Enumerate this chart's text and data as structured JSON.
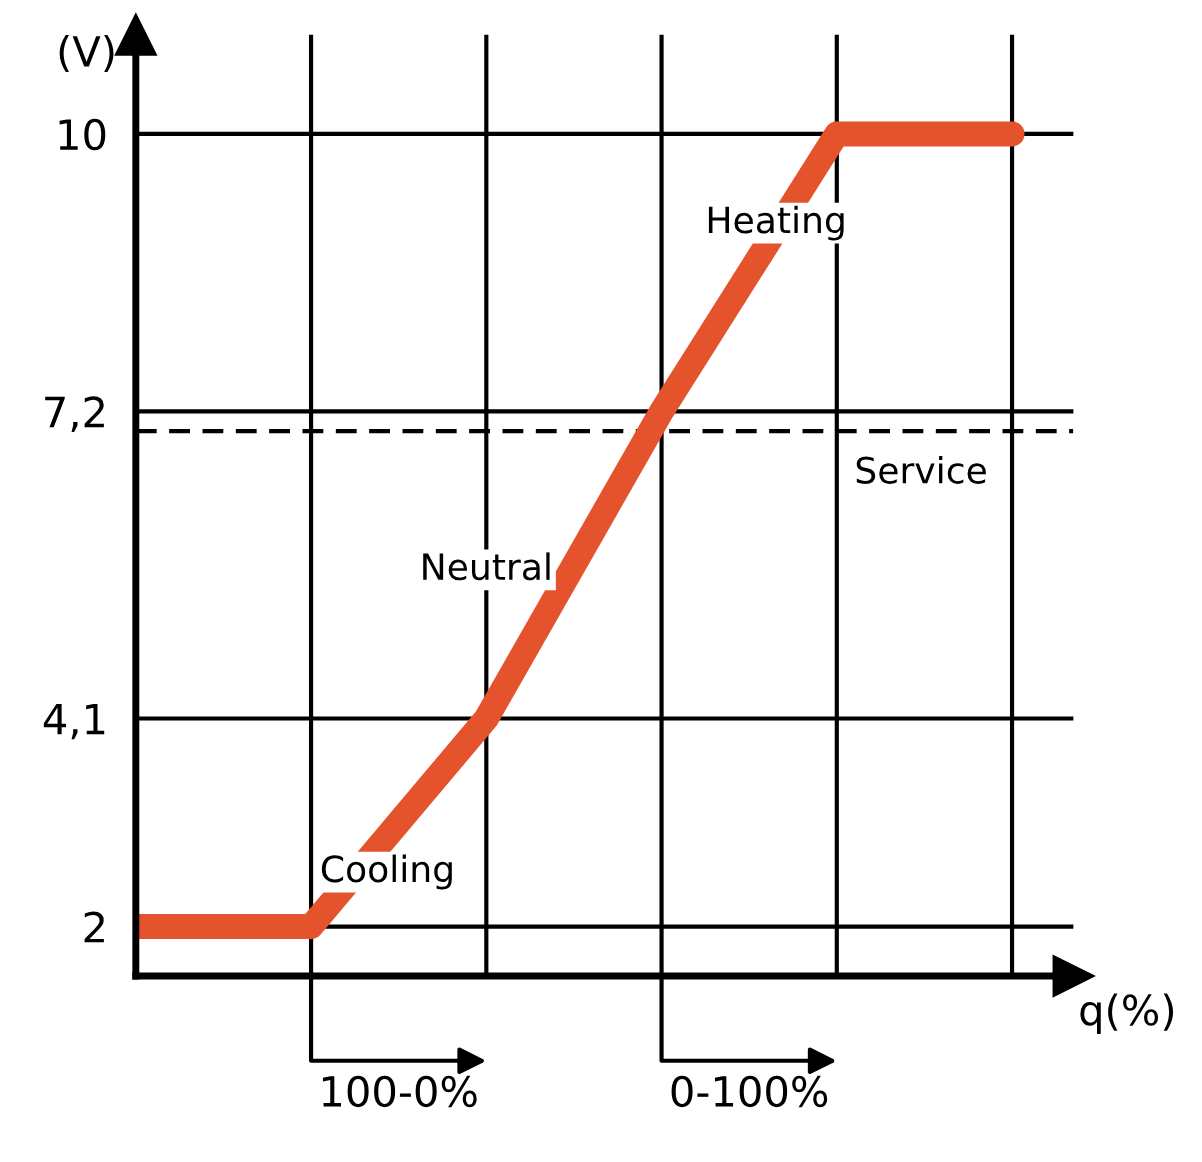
{
  "chart_data": {
    "type": "line",
    "xlabel": "q(%)",
    "ylabel": "(V)",
    "categories": [
      null,
      null,
      null,
      null,
      null,
      null
    ],
    "series": [
      {
        "values": [
          2,
          2,
          4.1,
          7.2,
          10,
          10
        ],
        "color": "#e5532d"
      }
    ],
    "ylim": [
      1.5,
      11
    ],
    "yticks": [
      2,
      {
        "value": 4.1,
        "label": "4,1"
      },
      {
        "value": 7.2,
        "label": "7,2"
      },
      10
    ],
    "ref_lines": [
      {
        "axis": "y",
        "value": 7.0,
        "label": "Service",
        "line_style": "dashed",
        "color": "#000000"
      }
    ],
    "annotations": [
      "Cooling",
      "Neutral",
      "Heating",
      "100-0%",
      "0-100%"
    ],
    "grid": true,
    "marker": "none",
    "tick_labels": "y"
  }
}
